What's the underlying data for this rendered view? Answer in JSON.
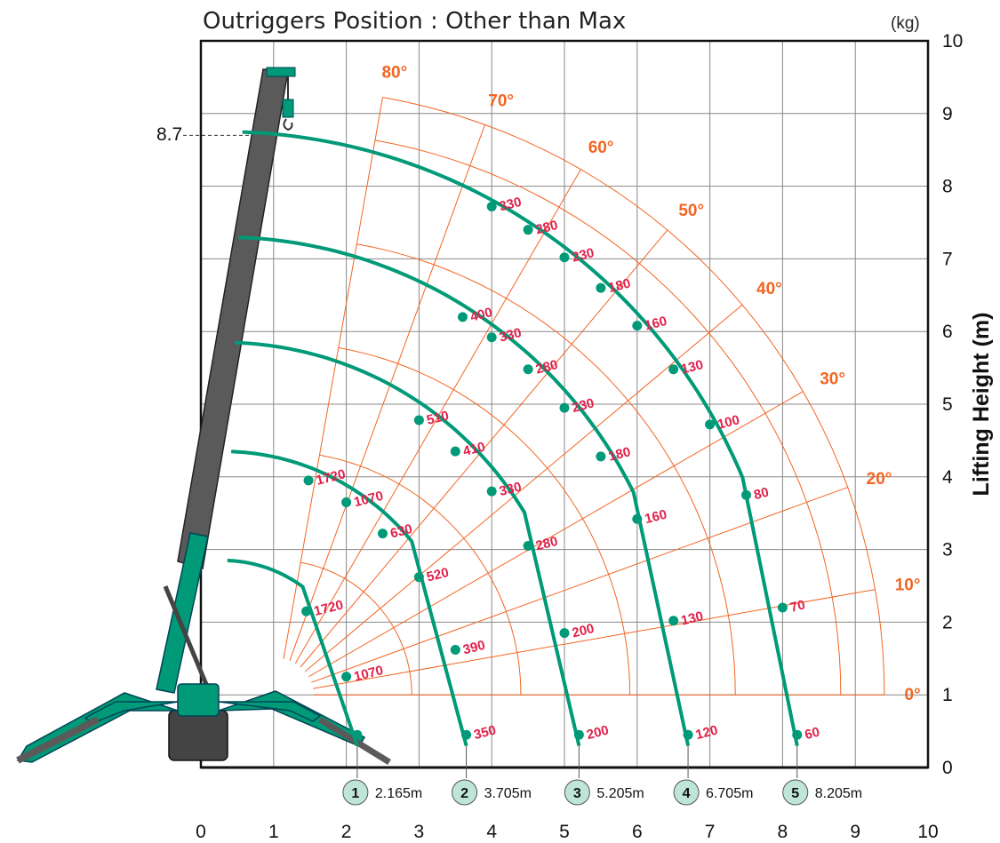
{
  "chart_data": {
    "type": "scatter",
    "title": "Outriggers Position : Other than Max",
    "unit_label": "(kg)",
    "xlabel": "",
    "ylabel": "Lifting Height (m)",
    "xlim": [
      0,
      10
    ],
    "ylim": [
      0,
      10
    ],
    "x_ticks": [
      "0",
      "1",
      "2",
      "3",
      "4",
      "5",
      "6",
      "7",
      "8",
      "9",
      "10"
    ],
    "y_ticks": [
      "0",
      "1",
      "2",
      "3",
      "4",
      "5",
      "6",
      "7",
      "8",
      "9",
      "10"
    ],
    "grid": true,
    "max_height_label": "8.7",
    "max_height": 8.7,
    "angle_labels": [
      "0°",
      "10°",
      "20°",
      "30°",
      "40°",
      "50°",
      "60°",
      "70°",
      "80°"
    ],
    "colors": {
      "curve": "#009a78",
      "load": "#e0204a",
      "angle": "#f26522",
      "boom": "#5a5a5a",
      "badge_fill": "#bfe5d8"
    },
    "series": [
      {
        "id": "1",
        "radius_label": "2.165m",
        "top": 2.85,
        "points": [
          {
            "x": 1.45,
            "y": 2.15,
            "label": "1720"
          },
          {
            "x": 2.0,
            "y": 1.25,
            "label": "1070"
          }
        ],
        "end": {
          "x": 2.15,
          "y": 0.45,
          "label": ""
        }
      },
      {
        "id": "2",
        "radius_label": "3.705m",
        "top": 4.35,
        "points": [
          {
            "x": 1.48,
            "y": 3.95,
            "label": "1720"
          },
          {
            "x": 2.0,
            "y": 3.65,
            "label": "1070"
          },
          {
            "x": 2.5,
            "y": 3.22,
            "label": "630"
          },
          {
            "x": 3.0,
            "y": 2.62,
            "label": "520"
          },
          {
            "x": 3.5,
            "y": 1.62,
            "label": "390"
          }
        ],
        "end": {
          "x": 3.65,
          "y": 0.45,
          "label": "350"
        }
      },
      {
        "id": "3",
        "radius_label": "5.205m",
        "top": 5.85,
        "points": [
          {
            "x": 3.0,
            "y": 4.78,
            "label": "510"
          },
          {
            "x": 3.5,
            "y": 4.35,
            "label": "410"
          },
          {
            "x": 4.0,
            "y": 3.8,
            "label": "330"
          },
          {
            "x": 4.5,
            "y": 3.05,
            "label": "280"
          },
          {
            "x": 5.0,
            "y": 1.85,
            "label": "200"
          }
        ],
        "end": {
          "x": 5.2,
          "y": 0.45,
          "label": "200"
        }
      },
      {
        "id": "4",
        "radius_label": "6.705m",
        "top": 7.3,
        "points": [
          {
            "x": 3.6,
            "y": 6.2,
            "label": "400"
          },
          {
            "x": 4.0,
            "y": 5.92,
            "label": "330"
          },
          {
            "x": 4.5,
            "y": 5.48,
            "label": "280"
          },
          {
            "x": 5.0,
            "y": 4.95,
            "label": "230"
          },
          {
            "x": 5.5,
            "y": 4.28,
            "label": "180"
          },
          {
            "x": 6.0,
            "y": 3.42,
            "label": "160"
          },
          {
            "x": 6.5,
            "y": 2.02,
            "label": "130"
          }
        ],
        "end": {
          "x": 6.7,
          "y": 0.45,
          "label": "120"
        }
      },
      {
        "id": "5",
        "radius_label": "8.205m",
        "top": 8.75,
        "points": [
          {
            "x": 4.0,
            "y": 7.72,
            "label": "330"
          },
          {
            "x": 4.5,
            "y": 7.4,
            "label": "280"
          },
          {
            "x": 5.0,
            "y": 7.02,
            "label": "230"
          },
          {
            "x": 5.5,
            "y": 6.6,
            "label": "180"
          },
          {
            "x": 6.0,
            "y": 6.08,
            "label": "160"
          },
          {
            "x": 6.5,
            "y": 5.48,
            "label": "130"
          },
          {
            "x": 7.0,
            "y": 4.72,
            "label": "100"
          },
          {
            "x": 7.5,
            "y": 3.75,
            "label": "80"
          },
          {
            "x": 8.0,
            "y": 2.2,
            "label": "70"
          }
        ],
        "end": {
          "x": 8.2,
          "y": 0.45,
          "label": "60"
        }
      }
    ]
  }
}
